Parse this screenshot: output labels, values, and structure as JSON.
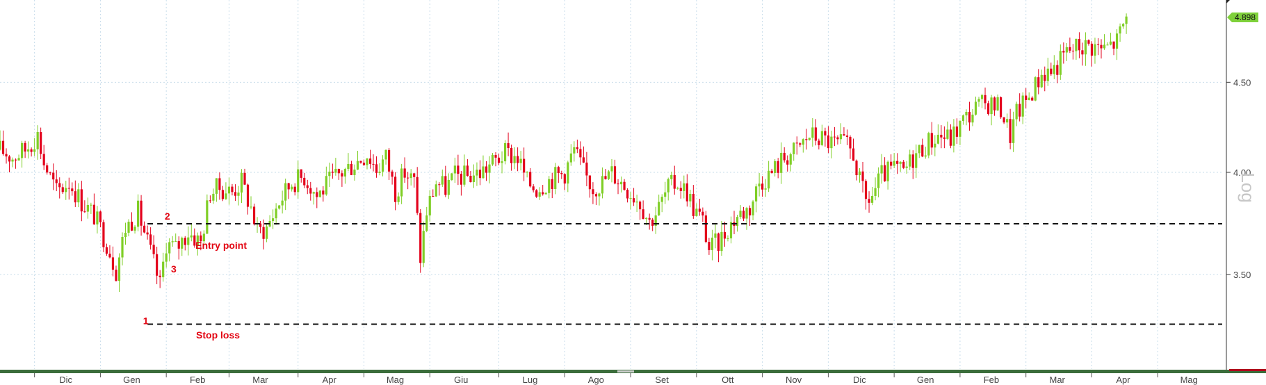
{
  "toolbar": {
    "buttons": [
      {
        "icon": "crosshair-icon"
      },
      {
        "icon": "pencil-icon"
      },
      {
        "icon": "list-icon"
      },
      {
        "icon": "zoom-icon"
      }
    ],
    "settings_icon": "gear-icon"
  },
  "chart_data": {
    "type": "candlestick",
    "scale": "log",
    "yaxis_label": "Log",
    "ylim": [
      3.15,
      4.9
    ],
    "yticks": [
      3.5,
      4.0,
      4.5
    ],
    "ytick_labels": [
      "3.50",
      "4.00",
      "4.50"
    ],
    "last_value": 4.898,
    "last_value_label": "4.898",
    "x_months": [
      {
        "label": "Dic",
        "x": 1
      },
      {
        "label": "Gen",
        "x": 22
      },
      {
        "label": "Feb",
        "x": 43
      },
      {
        "label": "Mar",
        "x": 63
      },
      {
        "label": "Apr",
        "x": 85
      },
      {
        "label": "Mag",
        "x": 106
      },
      {
        "label": "Giu",
        "x": 127
      },
      {
        "label": "Lug",
        "x": 149
      },
      {
        "label": "Ago",
        "x": 170
      },
      {
        "label": "Set",
        "x": 191
      },
      {
        "label": "Ott",
        "x": 212
      },
      {
        "label": "Nov",
        "x": 233
      },
      {
        "label": "Dic",
        "x": 254
      },
      {
        "label": "Gen",
        "x": 275
      },
      {
        "label": "Feb",
        "x": 296
      },
      {
        "label": "Mar",
        "x": 317
      },
      {
        "label": "Apr",
        "x": 338
      },
      {
        "label": "Mag",
        "x": 359
      }
    ],
    "x_range": [
      -10,
      380
    ],
    "price_path": [
      [
        -10,
        4.12
      ],
      [
        -6,
        4.08
      ],
      [
        -2,
        4.12
      ],
      [
        2,
        4.2
      ],
      [
        4,
        4.05
      ],
      [
        8,
        3.9
      ],
      [
        12,
        3.95
      ],
      [
        16,
        3.85
      ],
      [
        20,
        3.78
      ],
      [
        24,
        3.65
      ],
      [
        27,
        3.52
      ],
      [
        30,
        3.72
      ],
      [
        34,
        3.8
      ],
      [
        38,
        3.6
      ],
      [
        41,
        3.45
      ],
      [
        43,
        3.65
      ],
      [
        46,
        3.62
      ],
      [
        50,
        3.7
      ],
      [
        54,
        3.65
      ],
      [
        57,
        3.9
      ],
      [
        60,
        3.92
      ],
      [
        64,
        3.9
      ],
      [
        67,
        3.95
      ],
      [
        70,
        3.82
      ],
      [
        72,
        3.7
      ],
      [
        75,
        3.72
      ],
      [
        79,
        3.85
      ],
      [
        83,
        3.95
      ],
      [
        87,
        3.98
      ],
      [
        91,
        3.88
      ],
      [
        95,
        3.95
      ],
      [
        99,
        4.0
      ],
      [
        103,
        4.05
      ],
      [
        107,
        4.1
      ],
      [
        110,
        4.02
      ],
      [
        113,
        4.08
      ],
      [
        116,
        3.9
      ],
      [
        119,
        4.0
      ],
      [
        122,
        3.95
      ],
      [
        124,
        3.58
      ],
      [
        126,
        3.8
      ],
      [
        129,
        3.95
      ],
      [
        132,
        3.92
      ],
      [
        135,
        3.98
      ],
      [
        139,
        3.98
      ],
      [
        143,
        4.0
      ],
      [
        147,
        4.05
      ],
      [
        151,
        4.1
      ],
      [
        155,
        4.08
      ],
      [
        158,
        3.95
      ],
      [
        161,
        3.92
      ],
      [
        164,
        3.95
      ],
      [
        167,
        3.98
      ],
      [
        170,
        4.0
      ],
      [
        173,
        4.12
      ],
      [
        176,
        4.0
      ],
      [
        179,
        3.92
      ],
      [
        182,
        3.95
      ],
      [
        185,
        4.0
      ],
      [
        188,
        3.95
      ],
      [
        191,
        3.9
      ],
      [
        194,
        3.85
      ],
      [
        197,
        3.75
      ],
      [
        200,
        3.82
      ],
      [
        203,
        3.92
      ],
      [
        206,
        3.95
      ],
      [
        209,
        3.9
      ],
      [
        211,
        3.82
      ],
      [
        214,
        3.75
      ],
      [
        216,
        3.62
      ],
      [
        219,
        3.65
      ],
      [
        222,
        3.72
      ],
      [
        225,
        3.78
      ],
      [
        229,
        3.82
      ],
      [
        232,
        3.95
      ],
      [
        236,
        4.0
      ],
      [
        240,
        4.08
      ],
      [
        244,
        4.12
      ],
      [
        248,
        4.2
      ],
      [
        252,
        4.18
      ],
      [
        256,
        4.15
      ],
      [
        259,
        4.15
      ],
      [
        262,
        4.1
      ],
      [
        264,
        3.95
      ],
      [
        266,
        3.85
      ],
      [
        268,
        3.88
      ],
      [
        271,
        3.98
      ],
      [
        275,
        4.02
      ],
      [
        278,
        4.0
      ],
      [
        281,
        4.08
      ],
      [
        285,
        4.15
      ],
      [
        289,
        4.2
      ],
      [
        293,
        4.18
      ],
      [
        297,
        4.28
      ],
      [
        301,
        4.35
      ],
      [
        305,
        4.38
      ],
      [
        309,
        4.35
      ],
      [
        312,
        4.2
      ],
      [
        314,
        4.32
      ],
      [
        318,
        4.42
      ],
      [
        322,
        4.55
      ],
      [
        326,
        4.58
      ],
      [
        330,
        4.68
      ],
      [
        334,
        4.72
      ],
      [
        338,
        4.72
      ],
      [
        342,
        4.7
      ],
      [
        346,
        4.75
      ],
      [
        349,
        4.9
      ]
    ],
    "levels": [
      {
        "name": "entry",
        "value": 3.74,
        "x_start": 37
      },
      {
        "name": "stop",
        "value": 3.28,
        "x_start": 37
      }
    ],
    "annotations": [
      {
        "text": "1",
        "x": 35.6,
        "y": 3.28
      },
      {
        "text": "2",
        "x": 42.5,
        "y": 3.76
      },
      {
        "text": "3",
        "x": 44.5,
        "y": 3.51
      },
      {
        "text": "Entry point",
        "x": 52.3,
        "y": 3.62
      },
      {
        "text": "Stop loss",
        "x": 52.5,
        "y": 3.22
      }
    ]
  }
}
